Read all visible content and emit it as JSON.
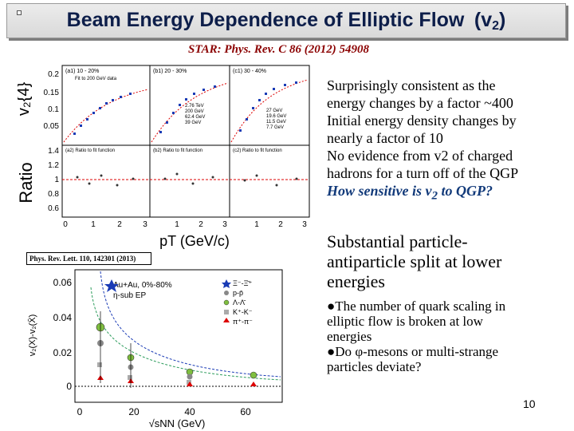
{
  "slide": {
    "title_main": "Beam Energy Dependence of Elliptic Flow",
    "title_symbol": "(v",
    "title_sub": "2",
    "title_close": ")",
    "citation": "STAR: Phys. Rev. C 86 (2012) 54908",
    "slide_number": "10"
  },
  "top_figure": {
    "ylabel_top": "v₂{4}",
    "ylabel_bottom": "Ratio",
    "xlabel": "pT (GeV/c)",
    "yticks_top": [
      "0.2",
      "0.15",
      "0.1",
      "0.05"
    ],
    "yticks_bottom": [
      "1.4",
      "1.2",
      "1",
      "0.8",
      "0.6"
    ],
    "xticks": [
      "0",
      "1",
      "2",
      "3"
    ],
    "panel_labels_top": [
      "(a1) 10 - 20%",
      "(b1) 20 - 30%",
      "(c1) 30 - 40%"
    ],
    "panel_labels_bottom": [
      "(a2) Ratio to fit function",
      "(b2) Ratio to fit function",
      "(c2) Ratio to fit function"
    ],
    "legend_a": [
      "Fit to 200 GeV data"
    ],
    "legend_b": [
      "2.76 TeV",
      "200 GeV",
      "62.4 GeV",
      "39 GeV"
    ],
    "legend_c": [
      "27 GeV",
      "19.6 GeV",
      "11.5 GeV",
      "7.7 GeV"
    ]
  },
  "bottom_figure": {
    "reference": "Phys. Rev. Lett. 110, 142301 (2013)",
    "ylabel": "v₂(X)-v₂(X̄)",
    "xlabel": "√sNN (GeV)",
    "yticks": [
      "0.06",
      "0.04",
      "0.02",
      "0"
    ],
    "xticks": [
      "0",
      "20",
      "40",
      "60"
    ],
    "annotation_1": "Au+Au, 0%-80%",
    "annotation_2": "η-sub EP",
    "legend": [
      "Ξ⁻-Ξ̄⁺",
      "p-p̄",
      "Λ-Λ̄",
      "K⁺-K⁻",
      "π⁺-π⁻"
    ]
  },
  "text_block_1": {
    "lines": [
      "Surprisingly consistent as the",
      "energy changes by a factor ~400",
      "Initial energy density changes by",
      "nearly a factor of 10",
      "No evidence from v2  of charged",
      "hadrons for a turn off  of the QGP"
    ],
    "question_prefix": "How sensitive is  v",
    "question_sub": "2",
    "question_suffix": " to  QGP?"
  },
  "text_block_2": {
    "lines": [
      "Substantial particle-",
      "antiparticle split at lower",
      "energies"
    ]
  },
  "bullets": {
    "b1_lines": [
      "The number of quark scaling in",
      "elliptic flow  is broken at low",
      "energies"
    ],
    "b2_prefix": "Do ",
    "b2_symbol": "φ",
    "b2_rest": "-mesons or multi-strange",
    "b2_line2": "particles  deviate?"
  }
}
